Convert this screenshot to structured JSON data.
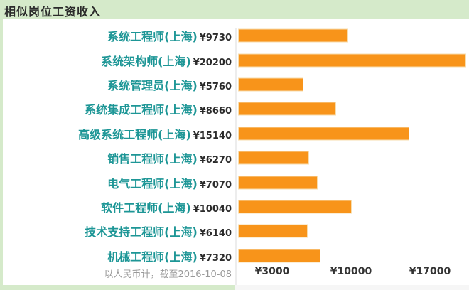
{
  "header": {
    "title": "相似岗位工资收入"
  },
  "footer": {
    "note": "以人民币计，截至2016-10-08"
  },
  "colors": {
    "background": "#d5eaca",
    "panel": "#ffffff",
    "bar": "#f8941a",
    "bar_border": "#f7ddad",
    "job_label": "#1d9696",
    "value_label": "#2b2b2b",
    "axis_label": "#333333",
    "axis_line": "#ededed",
    "footer_text": "#999999",
    "title_text": "#2b2b2b"
  },
  "chart_data": {
    "type": "bar",
    "orientation": "horizontal",
    "title": "相似岗位工资收入",
    "categories": [
      "系统工程师(上海)",
      "系统架构师(上海)",
      "系统管理员(上海)",
      "系统集成工程师(上海)",
      "高级系统工程师(上海)",
      "销售工程师(上海)",
      "电气工程师(上海)",
      "软件工程师(上海)",
      "技术支持工程师(上海)",
      "机械工程师(上海)"
    ],
    "values": [
      9730,
      20200,
      5760,
      8660,
      15140,
      6270,
      7070,
      10040,
      6140,
      7320
    ],
    "value_labels": [
      "¥9730",
      "¥20200",
      "¥5760",
      "¥8660",
      "¥15140",
      "¥6270",
      "¥7070",
      "¥10040",
      "¥6140",
      "¥7320"
    ],
    "currency": "¥",
    "x_ticks": [
      {
        "value": 3000,
        "label": "¥3000"
      },
      {
        "value": 10000,
        "label": "¥10000"
      },
      {
        "value": 17000,
        "label": "¥17000"
      }
    ],
    "xlim": [
      0,
      20700
    ],
    "grid": false,
    "legend": false,
    "note": "以人民币计，截至2016-10-08"
  }
}
